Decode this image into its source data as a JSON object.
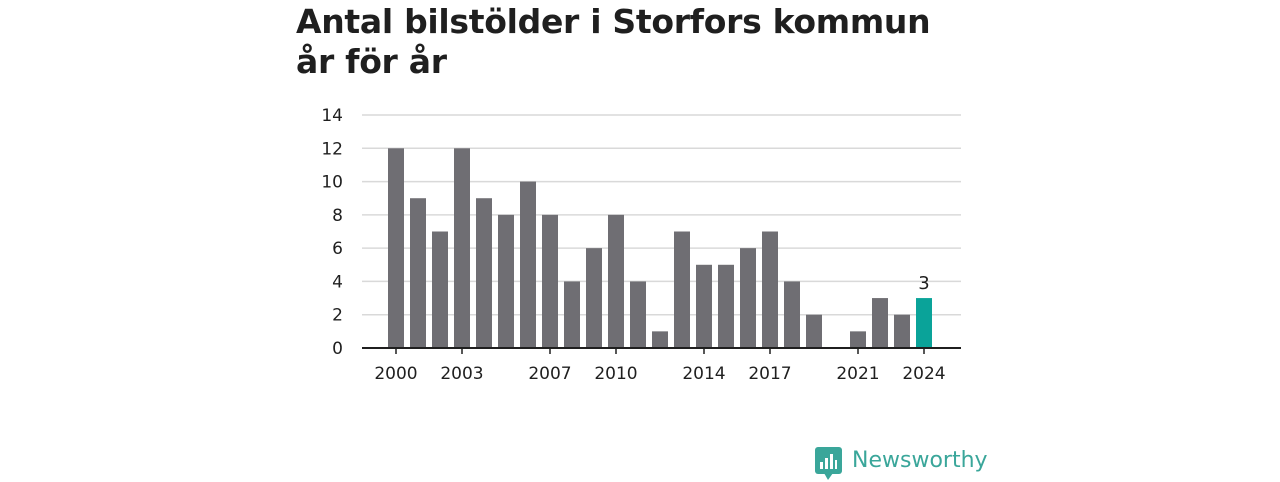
{
  "chart_data": {
    "type": "bar",
    "title": "Antal bilstölder i Storfors kommun år för år",
    "xlabel": "",
    "ylabel": "",
    "categories": [
      "2000",
      "2001",
      "2002",
      "2003",
      "2004",
      "2005",
      "2006",
      "2007",
      "2008",
      "2009",
      "2010",
      "2011",
      "2012",
      "2013",
      "2014",
      "2015",
      "2016",
      "2017",
      "2018",
      "2019",
      "2020",
      "2021",
      "2022",
      "2023",
      "2024"
    ],
    "values": [
      12,
      9,
      7,
      12,
      9,
      8,
      10,
      8,
      4,
      6,
      8,
      4,
      1,
      7,
      5,
      5,
      6,
      7,
      4,
      2,
      0,
      1,
      3,
      2,
      3
    ],
    "x_tick_labels": [
      "2000",
      "2003",
      "2007",
      "2010",
      "2014",
      "2017",
      "2021",
      "2024"
    ],
    "y_ticks": [
      0,
      2,
      4,
      6,
      8,
      10,
      12,
      14
    ],
    "ylim": [
      0,
      14
    ],
    "grid": "horizontal",
    "highlight": {
      "category": "2024",
      "label": "3"
    },
    "colors": {
      "bar": "#6f6e73",
      "highlight": "#0aa399",
      "grid": "#d9d9d9",
      "axis": "#1f1f1f"
    }
  },
  "brand": {
    "name": "Newsworthy",
    "color": "#3aa69a",
    "icon": "bar-chart-speech-bubble-icon"
  }
}
